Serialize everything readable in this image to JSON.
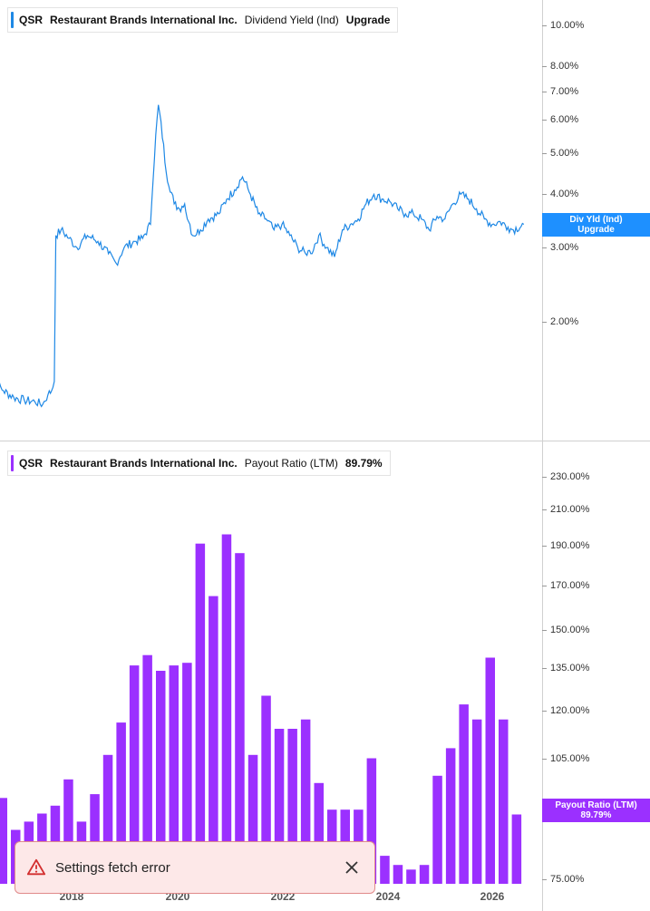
{
  "top_legend": {
    "ticker": "QSR",
    "company": "Restaurant Brands International Inc.",
    "metric": "Dividend Yield (Ind)",
    "value": "Upgrade",
    "color": "#1e88e5"
  },
  "bottom_legend": {
    "ticker": "QSR",
    "company": "Restaurant Brands International Inc.",
    "metric": "Payout Ratio (LTM)",
    "value": "89.79%",
    "color": "#9b30ff"
  },
  "yield_badge": {
    "line1": "Div Yld (Ind)",
    "line2": "Upgrade"
  },
  "payout_badge": {
    "line1": "Payout Ratio (LTM)",
    "line2": "89.79%"
  },
  "toast": {
    "message": "Settings fetch error"
  },
  "x_axis_labels": [
    "2018",
    "2020",
    "2022",
    "2024",
    "2026"
  ],
  "chart_data": [
    {
      "type": "line",
      "title": "Dividend Yield (Ind)",
      "y_scale": "log",
      "ylim": [
        1.15,
        11.2
      ],
      "y_ticks": [
        "10.00%",
        "8.00%",
        "7.00%",
        "6.00%",
        "5.00%",
        "4.00%",
        "3.00%",
        "2.00%"
      ],
      "y_tick_values": [
        10,
        8,
        7,
        6,
        5,
        4,
        3,
        2
      ],
      "series": [
        {
          "name": "Dividend Yield (Ind)",
          "x": [
            2016.4,
            2016.45,
            2016.7,
            2016.9,
            2017.1,
            2017.3,
            2017.45,
            2017.55,
            2017.62,
            2017.67,
            2017.7,
            2017.8,
            2017.95,
            2018.1,
            2018.3,
            2018.5,
            2018.7,
            2018.85,
            2019.0,
            2019.2,
            2019.35,
            2019.5,
            2019.65,
            2019.8,
            2019.95,
            2020.05,
            2020.1,
            2020.15,
            2020.17,
            2020.2,
            2020.25,
            2020.3,
            2020.45,
            2020.6,
            2020.8,
            2020.95,
            2021.1,
            2021.25,
            2021.4,
            2021.55,
            2021.7,
            2021.85,
            2022.0,
            2022.15,
            2022.3,
            2022.45,
            2022.5,
            2022.55,
            2022.7,
            2022.85,
            2023.0,
            2023.15,
            2023.3,
            2023.45,
            2023.6,
            2023.75,
            2023.9,
            2024.05,
            2024.2,
            2024.35,
            2024.5,
            2024.65,
            2024.8,
            2024.95,
            2025.1,
            2025.25,
            2025.4,
            2025.55,
            2025.7,
            2025.85,
            2026.0,
            2026.15,
            2026.3,
            2026.4,
            2026.6
          ],
          "values": [
            1.4,
            1.5,
            1.38,
            1.33,
            1.31,
            1.3,
            1.28,
            1.35,
            1.38,
            1.45,
            3.2,
            3.3,
            3.15,
            3.0,
            3.2,
            3.1,
            2.9,
            2.75,
            3.0,
            3.1,
            3.15,
            3.4,
            6.5,
            4.5,
            3.8,
            3.7,
            3.75,
            3.8,
            3.65,
            3.5,
            3.4,
            3.2,
            3.3,
            3.5,
            3.6,
            3.9,
            4.1,
            4.4,
            4.0,
            3.6,
            3.5,
            3.3,
            3.4,
            3.2,
            3.0,
            2.9,
            2.95,
            2.9,
            3.2,
            3.0,
            2.85,
            3.3,
            3.4,
            3.5,
            3.8,
            4.0,
            3.9,
            3.85,
            3.7,
            3.6,
            3.6,
            3.5,
            3.3,
            3.55,
            3.5,
            3.8,
            4.0,
            3.9,
            3.7,
            3.5,
            3.4,
            3.45,
            3.35,
            3.3,
            3.4
          ]
        }
      ]
    },
    {
      "type": "bar",
      "title": "Payout Ratio (LTM)",
      "y_scale": "log",
      "ylim": [
        74,
        236
      ],
      "y_ticks": [
        "230.00%",
        "210.00%",
        "190.00%",
        "170.00%",
        "150.00%",
        "135.00%",
        "120.00%",
        "105.00%",
        "75.00%"
      ],
      "y_tick_values": [
        230,
        210,
        190,
        170,
        150,
        135,
        120,
        105,
        75
      ],
      "series": [
        {
          "name": "Payout Ratio (LTM)",
          "values": [
            94,
            86,
            88,
            90,
            92,
            99,
            88,
            95,
            106,
            116,
            136,
            140,
            134,
            136,
            137,
            191,
            165,
            196,
            186,
            106,
            125,
            114,
            114,
            117,
            98,
            91,
            91,
            91,
            105,
            80,
            78,
            77,
            78,
            100,
            108,
            122,
            117,
            139,
            117,
            89.79
          ]
        }
      ]
    }
  ]
}
